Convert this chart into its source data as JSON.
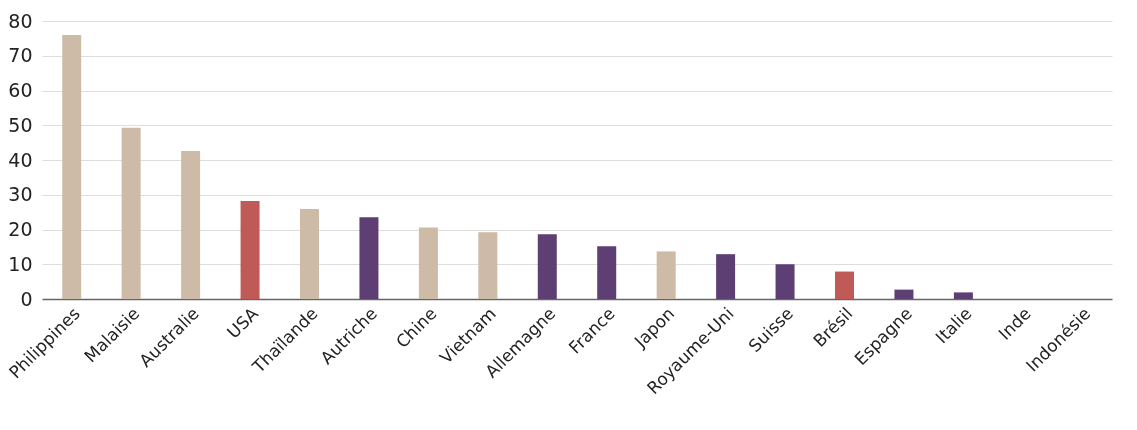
{
  "chart_data": {
    "type": "bar",
    "categories": [
      "Philippines",
      "Malaisie",
      "Australie",
      "USA",
      "Thaïlande",
      "Autriche",
      "Chine",
      "Vietnam",
      "Allemagne",
      "France",
      "Japon",
      "Royaume-Uni",
      "Suisse",
      "Brésil",
      "Espagne",
      "Italie",
      "Inde",
      "Indonésie"
    ],
    "values": [
      76,
      49.3,
      42.6,
      28.2,
      25.9,
      23.5,
      20.6,
      19.2,
      18.6,
      15.2,
      13.7,
      12.9,
      10,
      7.9,
      2.7,
      1.9,
      0,
      0
    ],
    "colors": [
      "#cdbba8",
      "#cdbba8",
      "#cdbba8",
      "#c05a57",
      "#cdbba8",
      "#5e3f73",
      "#cdbba8",
      "#cdbba8",
      "#5e3f73",
      "#5e3f73",
      "#cdbba8",
      "#5e3f73",
      "#5e3f73",
      "#c05a57",
      "#5e3f73",
      "#5e3f73",
      "#5e3f73",
      "#5e3f73"
    ],
    "ylim": [
      0,
      80
    ],
    "yticks": [
      0,
      10,
      20,
      30,
      40,
      50,
      60,
      70,
      80
    ],
    "grid": "y",
    "legend": false
  }
}
